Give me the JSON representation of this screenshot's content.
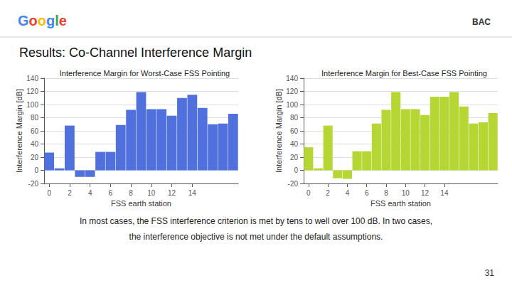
{
  "title": "Results: Co-Channel Interference Margin",
  "annotations": [
    {
      "text": "Google",
      "colors": [
        "#4285F4",
        "#EA4335",
        "#FBBC05",
        "#4285F4",
        "#34A853",
        "#EA4335"
      ]
    },
    {
      "text": "BAC"
    },
    {
      "text": "In most cases, the FSS interference criterion is met by tens to well over 100 dB. In two cases,"
    },
    {
      "text": "the interference objective is not met under the default assumptions."
    },
    {
      "text": "31"
    }
  ],
  "chart_data": [
    {
      "type": "bar",
      "title": "Interference Margin for Worst-Case FSS Pointing",
      "xlabel": "FSS earth station",
      "ylabel": "Interference Margin [dB]",
      "x": [
        0,
        1,
        2,
        3,
        4,
        5,
        6,
        7,
        8,
        9,
        10,
        11,
        12,
        13,
        14,
        15,
        16,
        17,
        18
      ],
      "values": [
        27,
        3,
        68,
        -10,
        -10,
        28,
        28,
        69,
        92,
        119,
        93,
        93,
        83,
        110,
        115,
        95,
        70,
        71,
        86
      ],
      "xlim": [
        -0.5,
        18.5
      ],
      "xticks": [
        0,
        2,
        4,
        6,
        8,
        10,
        12,
        14
      ],
      "ylim": [
        -20,
        140
      ],
      "yticks": [
        -20,
        0,
        20,
        40,
        60,
        80,
        100,
        120,
        140
      ],
      "grid": true
    },
    {
      "type": "bar",
      "title": "Interference Margin for Best-Case FSS Pointing",
      "xlabel": "FSS earth station",
      "ylabel": "Interference Margin [dB]",
      "x": [
        0,
        1,
        2,
        3,
        4,
        5,
        6,
        7,
        8,
        9,
        10,
        11,
        12,
        13,
        14,
        15,
        16,
        17,
        18,
        19
      ],
      "values": [
        35,
        3,
        68,
        -12,
        -13,
        29,
        29,
        71,
        92,
        119,
        93,
        93,
        84,
        112,
        112,
        119,
        97,
        71,
        73,
        87
      ],
      "xlim": [
        -0.5,
        19.5
      ],
      "xticks": [
        0,
        2,
        4,
        6,
        8,
        10,
        12,
        14
      ],
      "ylim": [
        -20,
        140
      ],
      "yticks": [
        -20,
        0,
        20,
        40,
        60,
        80,
        100,
        120,
        140
      ],
      "grid": true
    }
  ]
}
